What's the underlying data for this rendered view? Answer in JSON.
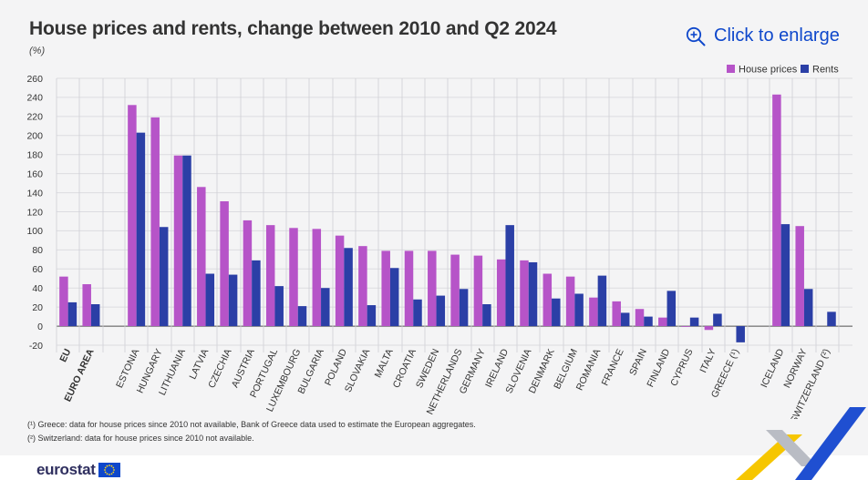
{
  "header": {
    "title": "House prices and rents, change between 2010 and Q2 2024",
    "unit": "(%)"
  },
  "enlarge_link": {
    "label": "Click to enlarge",
    "icon": "zoom-in-icon"
  },
  "colors": {
    "house_prices": "#b654c8",
    "rents": "#2b3fa6",
    "accent": "#0e47cb"
  },
  "chart_data": {
    "type": "bar",
    "ylim": [
      -20,
      260
    ],
    "yticks": [
      -20,
      0,
      20,
      40,
      60,
      80,
      100,
      120,
      140,
      160,
      180,
      200,
      220,
      240,
      260
    ],
    "grid": true,
    "legend": {
      "position": "top-right",
      "entries": [
        "House prices",
        "Rents"
      ]
    },
    "groups": [
      {
        "categories": [
          "EU",
          "EURO AREA"
        ],
        "bold": true
      },
      {
        "categories": [
          "ESTONIA",
          "HUNGARY",
          "LITHUANIA",
          "LATVIA",
          "CZECHIA",
          "AUSTRIA",
          "PORTUGAL",
          "LUXEMBOURG",
          "BULGARIA",
          "POLAND",
          "SLOVAKIA",
          "MALTA",
          "CROATIA",
          "SWEDEN",
          "NETHERLANDS",
          "GERMANY",
          "IRELAND",
          "SLOVENIA",
          "DENMARK",
          "BELGIUM",
          "ROMANIA",
          "FRANCE",
          "SPAIN",
          "FINLAND",
          "CYPRUS",
          "ITALY",
          "GREECE (¹)"
        ],
        "bold": false
      },
      {
        "categories": [
          "ICELAND",
          "NORWAY",
          "SWITZERLAND (²)"
        ],
        "bold": false
      }
    ],
    "categories": [
      "EU",
      "EURO AREA",
      "ESTONIA",
      "HUNGARY",
      "LITHUANIA",
      "LATVIA",
      "CZECHIA",
      "AUSTRIA",
      "PORTUGAL",
      "LUXEMBOURG",
      "BULGARIA",
      "POLAND",
      "SLOVAKIA",
      "MALTA",
      "CROATIA",
      "SWEDEN",
      "NETHERLANDS",
      "GERMANY",
      "IRELAND",
      "SLOVENIA",
      "DENMARK",
      "BELGIUM",
      "ROMANIA",
      "FRANCE",
      "SPAIN",
      "FINLAND",
      "CYPRUS",
      "ITALY",
      "GREECE (¹)",
      "ICELAND",
      "NORWAY",
      "SWITZERLAND (²)"
    ],
    "series": [
      {
        "name": "House prices",
        "values": [
          52,
          44,
          232,
          219,
          179,
          146,
          131,
          111,
          106,
          103,
          102,
          95,
          84,
          79,
          79,
          79,
          75,
          74,
          70,
          69,
          55,
          52,
          30,
          26,
          18,
          9,
          0,
          -4,
          null,
          243,
          105,
          null
        ]
      },
      {
        "name": "Rents",
        "values": [
          25,
          23,
          203,
          104,
          179,
          55,
          54,
          69,
          42,
          21,
          40,
          82,
          22,
          61,
          28,
          32,
          39,
          23,
          106,
          67,
          29,
          34,
          53,
          14,
          10,
          37,
          9,
          13,
          -17,
          107,
          39,
          15
        ]
      }
    ]
  },
  "footnotes": [
    "(¹) Greece: data for house prices since 2010 not available, Bank of Greece data used to estimate the European aggregates.",
    "(²) Switzerland: data for house prices since 2010 not available."
  ],
  "logo": {
    "text": "eurostat"
  }
}
